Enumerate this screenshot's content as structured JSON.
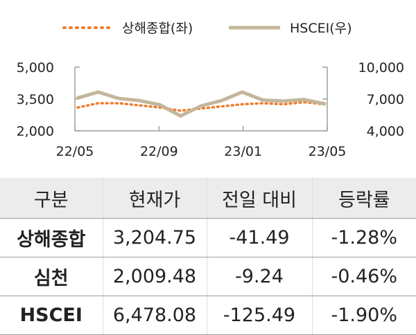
{
  "colors": {
    "shanghai": "#ee7d31",
    "hscei": "#c4b69a",
    "axis": "#9e9e9e",
    "header_bg": "#ececec"
  },
  "chart_data": {
    "type": "line",
    "legend": {
      "placement": "top-center"
    },
    "grid": false,
    "x_ticks": [
      "22/05",
      "22/09",
      "23/01",
      "23/05"
    ],
    "y_left": {
      "range": [
        2000,
        5000
      ],
      "ticks": [
        "5,000",
        "3,500",
        "2,000"
      ]
    },
    "y_right": {
      "range": [
        4000,
        10000
      ],
      "ticks": [
        "10,000",
        "7,000",
        "4,000"
      ]
    },
    "series": [
      {
        "name": "상해종합(좌)",
        "axis": "left",
        "style": "dotted",
        "x": [
          "22/05",
          "22/06",
          "22/07",
          "22/08",
          "22/09",
          "22/10",
          "22/11",
          "22/12",
          "23/01",
          "23/02",
          "23/03",
          "23/04",
          "23/05"
        ],
        "values": [
          3100,
          3300,
          3300,
          3200,
          3100,
          2950,
          3050,
          3150,
          3250,
          3300,
          3250,
          3350,
          3250
        ]
      },
      {
        "name": "HSCEI(우)",
        "axis": "right",
        "style": "solid",
        "x": [
          "22/05",
          "22/06",
          "22/07",
          "22/08",
          "22/09",
          "22/10",
          "22/11",
          "22/12",
          "23/01",
          "23/02",
          "23/03",
          "23/04",
          "23/05"
        ],
        "values": [
          7100,
          7650,
          7050,
          6850,
          6450,
          5400,
          6350,
          6850,
          7650,
          6900,
          6800,
          6950,
          6550
        ]
      }
    ]
  },
  "table": {
    "headers": [
      "구분",
      "현재가",
      "전일 대비",
      "등락률"
    ],
    "rows": [
      [
        "상해종합",
        "3,204.75",
        "-41.49",
        "-1.28%"
      ],
      [
        "심천",
        "2,009.48",
        "-9.24",
        "-0.46%"
      ],
      [
        "HSCEI",
        "6,478.08",
        "-125.49",
        "-1.90%"
      ]
    ]
  }
}
